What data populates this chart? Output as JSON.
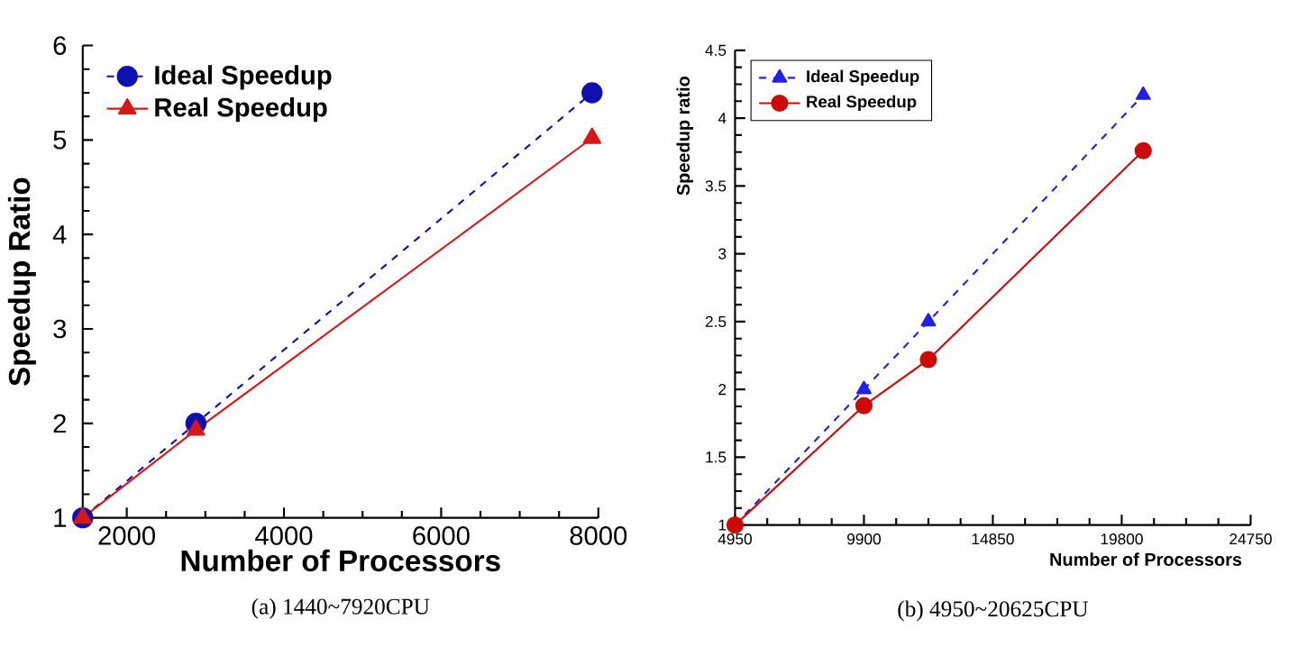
{
  "chart_data": [
    {
      "type": "line",
      "title": "(a) 1440~7920CPU",
      "xlabel": "Number of Processors",
      "ylabel": "Speedup Ratio",
      "x": [
        1440,
        2880,
        7920
      ],
      "series": [
        {
          "name": "Ideal Speedup",
          "color": "#1010b0",
          "values": [
            1,
            2,
            5.5
          ],
          "marker": "circle",
          "line_style": "dashed"
        },
        {
          "name": "Real Speedup",
          "color": "#d81818",
          "values": [
            1,
            1.93,
            5.02
          ],
          "marker": "triangle",
          "line_style": "solid"
        }
      ],
      "xlim": [
        1440,
        8000
      ],
      "ylim": [
        1,
        6
      ],
      "xticks": [
        2000,
        4000,
        6000,
        8000
      ],
      "yticks": [
        1,
        2,
        3,
        4,
        5,
        6
      ],
      "legend": "top left"
    },
    {
      "type": "line",
      "title": "(b) 4950~20625CPU",
      "xlabel": "Number of Processors",
      "ylabel": "Speedup ratio",
      "x": [
        4950,
        9900,
        12375,
        20625
      ],
      "series": [
        {
          "name": "Ideal Speedup",
          "color": "#2020e8",
          "values": [
            1,
            2,
            2.5,
            4.17
          ],
          "marker": "triangle",
          "line_style": "dashed"
        },
        {
          "name": "Real Speedup",
          "color": "#cc0a0a",
          "values": [
            1,
            1.88,
            2.22,
            3.76
          ],
          "marker": "circle",
          "line_style": "solid"
        }
      ],
      "xlim": [
        4950,
        24750
      ],
      "ylim": [
        1,
        4.5
      ],
      "xticks": [
        4950,
        9900,
        14850,
        19800,
        24750
      ],
      "yticks": [
        1,
        1.5,
        2,
        2.5,
        3,
        3.5,
        4,
        4.5
      ],
      "legend": "top left"
    }
  ]
}
